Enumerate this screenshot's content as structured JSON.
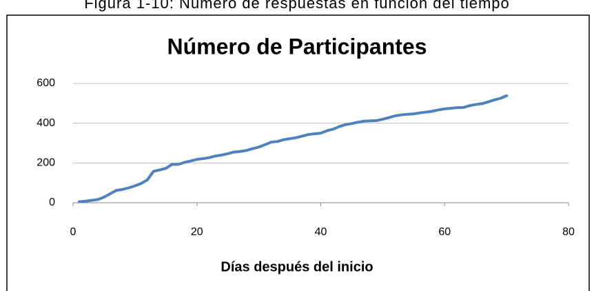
{
  "caption": "Figura 1-10: Número de respuestas en función del tiempo",
  "chart_data": {
    "type": "line",
    "title": "Número de Participantes",
    "xlabel": "Días después del inicio",
    "x": [
      1,
      2,
      3,
      4,
      5,
      6,
      7,
      8,
      9,
      10,
      11,
      12,
      13,
      14,
      15,
      16,
      17,
      18,
      19,
      20,
      21,
      22,
      23,
      24,
      25,
      26,
      27,
      28,
      29,
      30,
      31,
      32,
      33,
      34,
      35,
      36,
      37,
      38,
      39,
      40,
      41,
      42,
      43,
      44,
      45,
      46,
      47,
      48,
      49,
      50,
      51,
      52,
      53,
      54,
      55,
      56,
      57,
      58,
      59,
      60,
      61,
      62,
      63,
      64,
      65,
      66,
      67,
      68,
      69,
      70
    ],
    "series": [
      {
        "name": "Participantes",
        "color": "#4f81bd",
        "values": [
          5,
          8,
          12,
          16,
          28,
          45,
          62,
          67,
          75,
          85,
          97,
          115,
          158,
          165,
          173,
          193,
          193,
          203,
          210,
          218,
          222,
          227,
          235,
          240,
          247,
          255,
          258,
          263,
          272,
          280,
          292,
          305,
          308,
          317,
          322,
          327,
          335,
          343,
          347,
          350,
          362,
          370,
          383,
          393,
          398,
          405,
          410,
          412,
          413,
          420,
          428,
          437,
          442,
          445,
          447,
          452,
          456,
          460,
          467,
          472,
          475,
          478,
          479,
          488,
          494,
          498,
          507,
          517,
          525,
          538
        ]
      }
    ],
    "xlim": [
      0,
      80
    ],
    "xticks": [
      0,
      20,
      40,
      60,
      80
    ],
    "ylim": [
      0,
      600
    ],
    "yticks": [
      0,
      200,
      400,
      600
    ],
    "grid": true
  }
}
